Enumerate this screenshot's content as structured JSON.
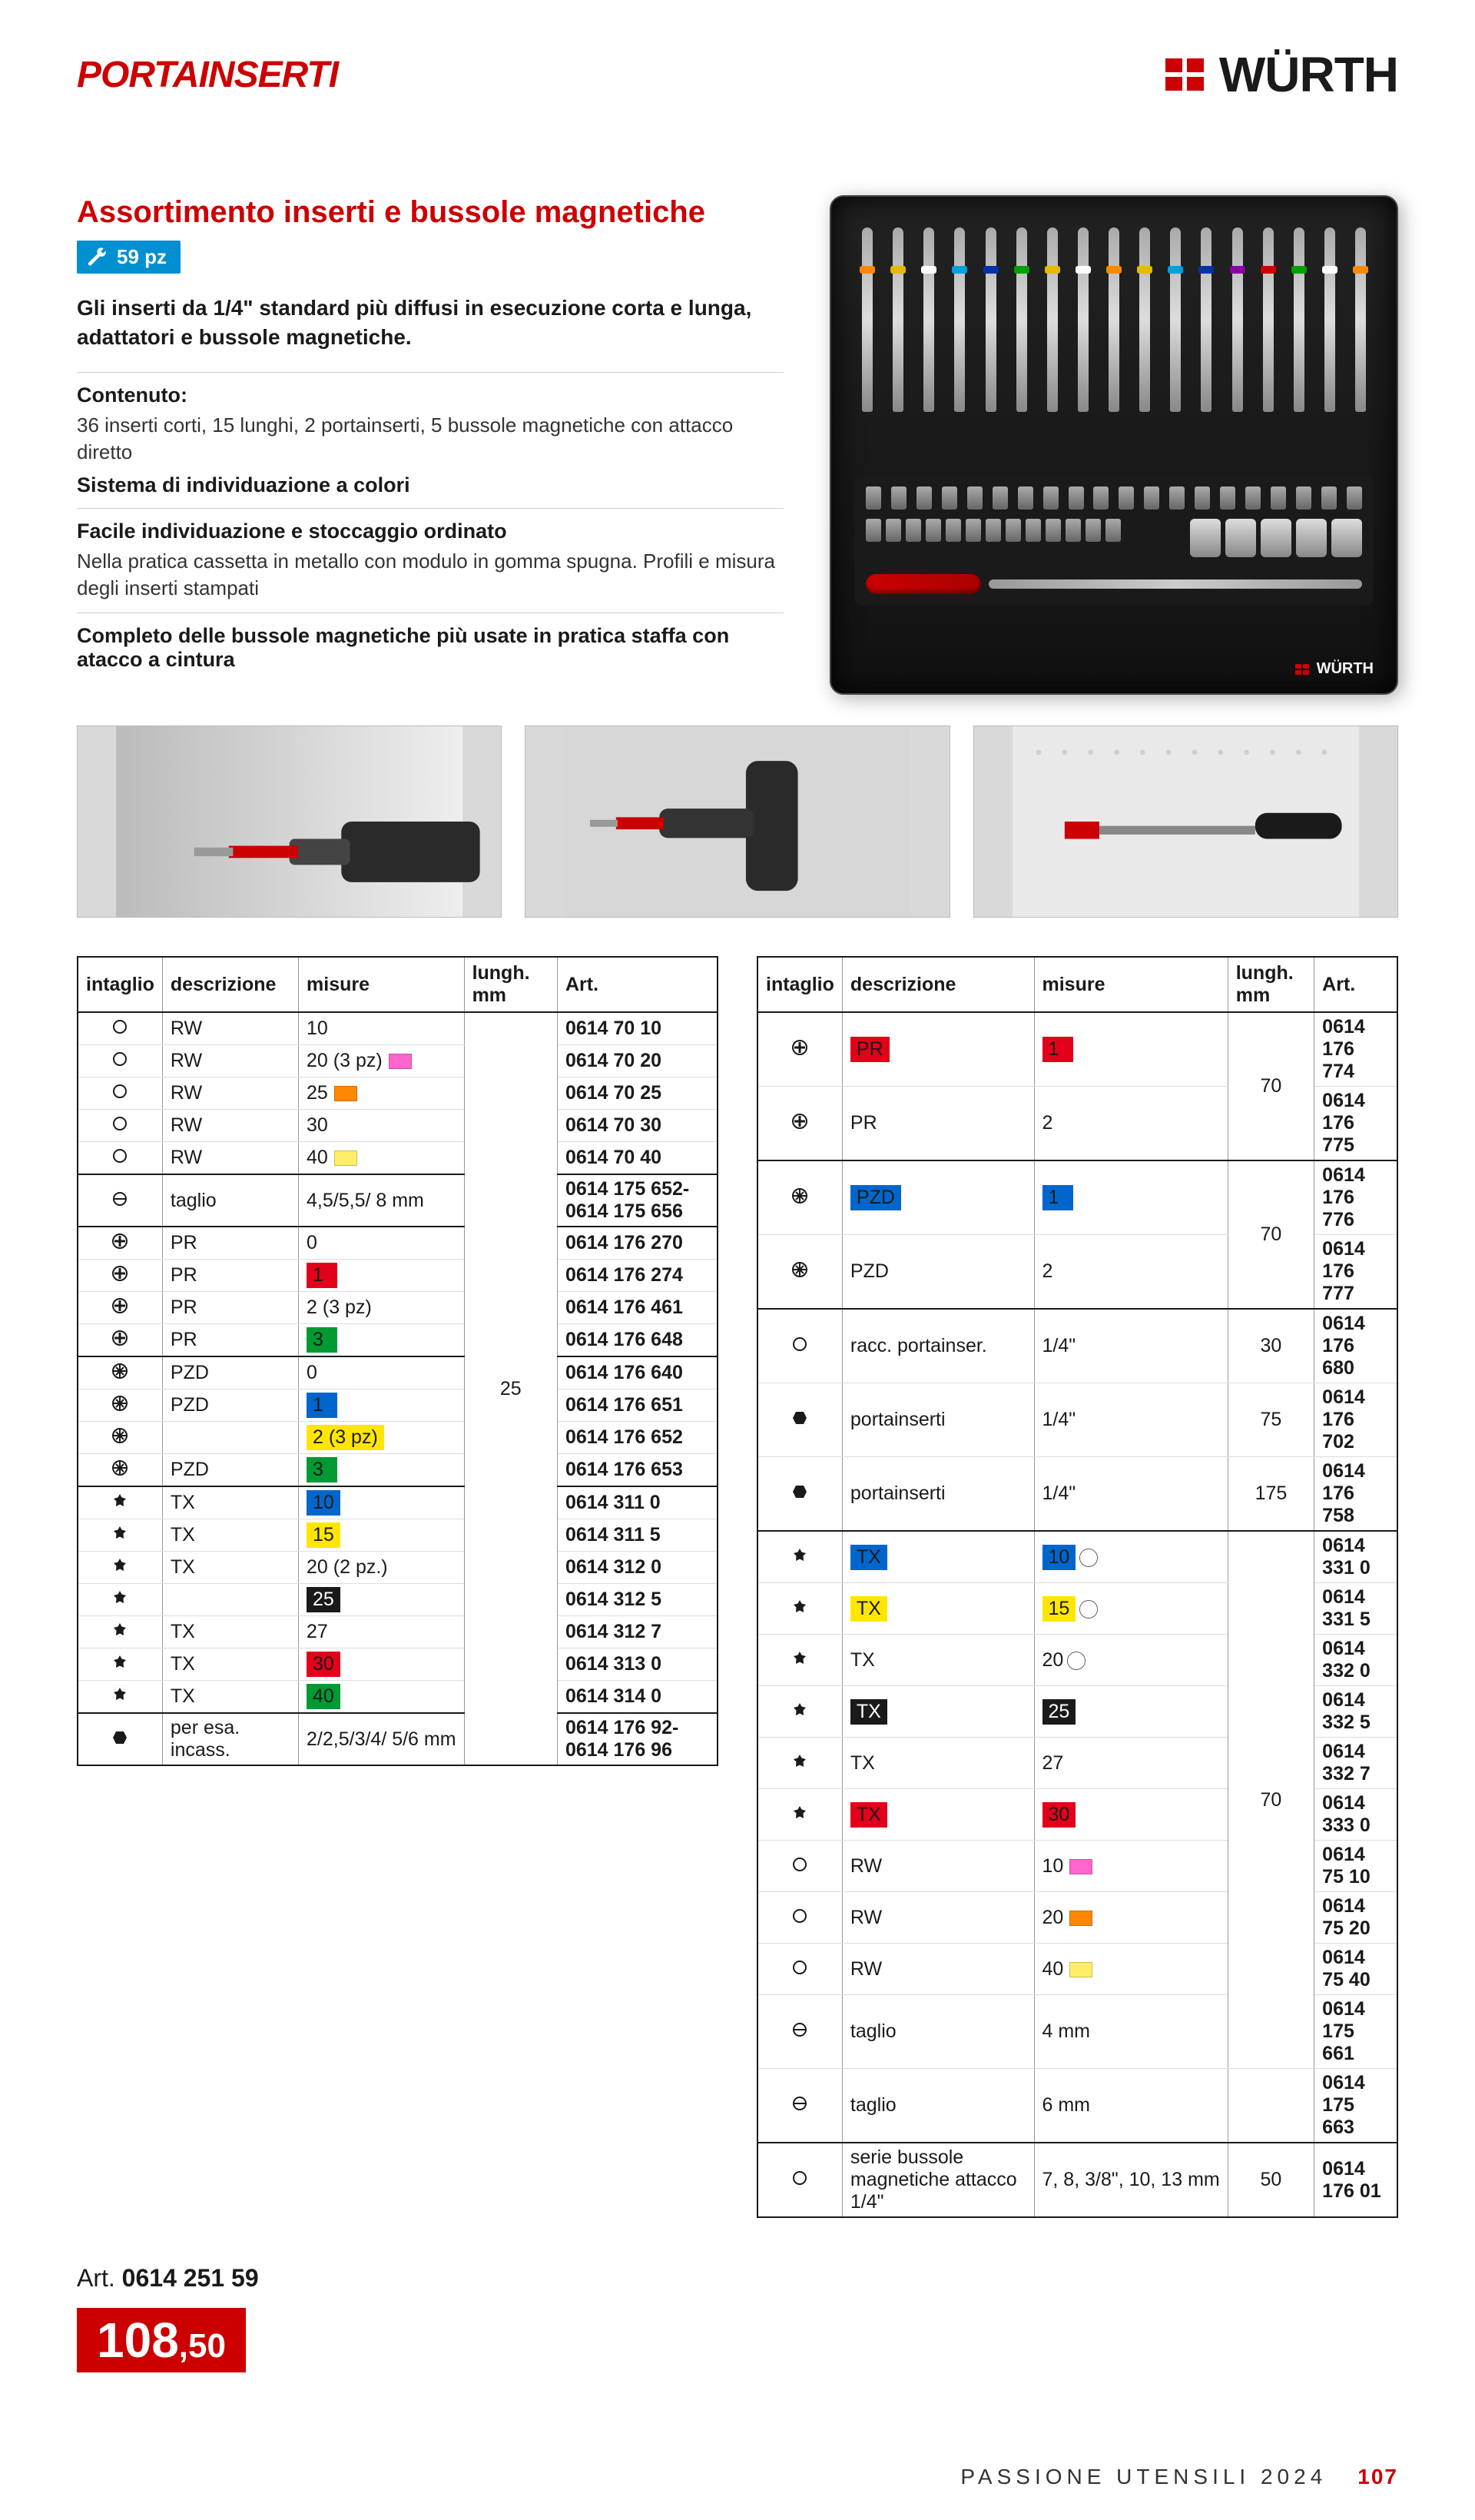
{
  "header": {
    "section_label": "PORTAINSERTI",
    "brand": "WÜRTH"
  },
  "product": {
    "title": "Assortimento inserti e bussole magnetiche",
    "pieces_badge": "59 pz",
    "intro": "Gli inserti da 1/4\" standard più diffusi in esecuzione corta e lunga, adattatori e bussole magnetiche.",
    "content_h": "Contenuto:",
    "content_p": "36 inserti corti, 15 lunghi, 2 portainserti, 5 bussole magnetiche con attacco diretto",
    "feat1_h": "Sistema di individuazione a colori",
    "feat2_h": "Facile individuazione e stoccaggio ordinato",
    "feat2_p": "Nella pratica cassetta in metallo con modulo in gomma spugna. Profili e misura degli inserti stampati",
    "feat3_h": "Completo delle bussole magnetiche più usate in pratica staffa con atacco a cintura",
    "art_label": "Art.",
    "art_number": "0614 251 59",
    "price_int": "108",
    "price_dec": ",50"
  },
  "colors": {
    "brand_red": "#cc0000",
    "badge_blue": "#0090d0",
    "hl_red": "#e2001a",
    "hl_yellow": "#ffe600",
    "hl_blue": "#0066cc",
    "hl_black": "#1a1a1a",
    "hl_green": "#009933",
    "sw_pink": "#ff66cc",
    "sw_orange": "#ff8800",
    "sw_yellow": "#ffcc00",
    "sw_ltyellow": "#ffee66"
  },
  "table_headers": {
    "intaglio": "intaglio",
    "descrizione": "descrizione",
    "misure": "misure",
    "lungh": "lungh. mm",
    "art": "Art."
  },
  "table_left": [
    {
      "sym": "slot",
      "desc": "RW",
      "m": "10",
      "sw": "",
      "len": "",
      "art": "0614 70 10",
      "bt": true
    },
    {
      "sym": "slot",
      "desc": "RW",
      "m": "20 (3 pz)",
      "sw": "#ff66cc",
      "art": "0614 70 20"
    },
    {
      "sym": "slot",
      "desc": "RW",
      "m": "25",
      "sw": "#ff8800",
      "art": "0614 70 25"
    },
    {
      "sym": "slot",
      "desc": "RW",
      "m": "30",
      "sw": "",
      "art": "0614 70 30"
    },
    {
      "sym": "slot",
      "desc": "RW",
      "m": "40",
      "sw": "#ffee66",
      "art": "0614 70 40"
    },
    {
      "sym": "flat",
      "desc": "taglio",
      "m": "4,5/5,5/ 8 mm",
      "sw": "",
      "art": "0614 175 652- 0614 175 656",
      "bt": true
    },
    {
      "sym": "ph",
      "desc": "PR",
      "m": "0",
      "sw": "",
      "art": "0614 176 270",
      "bt": true
    },
    {
      "sym": "ph",
      "desc": "PR",
      "m_hl": "1",
      "hl": "#e2001a",
      "art": "0614 176 274"
    },
    {
      "sym": "ph",
      "desc": "PR",
      "m": "2 (3 pz)",
      "sw": "",
      "art": "0614 176 461"
    },
    {
      "sym": "ph",
      "desc": "PR",
      "m_hl": "3",
      "hl": "#009933",
      "art": "0614 176 648"
    },
    {
      "sym": "pz",
      "desc": "PZD",
      "m": "0",
      "sw": "",
      "art": "0614 176 640",
      "bt": true
    },
    {
      "sym": "pz",
      "desc": "PZD",
      "m_hl": "1",
      "hl": "#0066cc",
      "art": "0614 176 651"
    },
    {
      "sym": "pz",
      "desc": "",
      "m_hl": "2 (3 pz)",
      "hl": "#ffe600",
      "art": "0614 176 652"
    },
    {
      "sym": "pz",
      "desc": "PZD",
      "m_hl": "3",
      "hl": "#009933",
      "art": "0614 176 653"
    },
    {
      "sym": "tx",
      "desc": "TX",
      "m_hl": "10",
      "hl": "#0066cc",
      "art": "0614 311 0",
      "bt": true
    },
    {
      "sym": "tx",
      "desc": "TX",
      "m_hl": "15",
      "hl": "#ffe600",
      "art": "0614 311 5"
    },
    {
      "sym": "tx",
      "desc": "TX",
      "m": "20 (2 pz.)",
      "sw": "",
      "art": "0614 312 0"
    },
    {
      "sym": "tx",
      "desc": "",
      "m_hl": "25",
      "hl": "#1a1a1a",
      "hl_fg": "#fff",
      "art": "0614 312 5"
    },
    {
      "sym": "tx",
      "desc": "TX",
      "m": "27",
      "sw": "",
      "art": "0614 312 7"
    },
    {
      "sym": "tx",
      "desc": "TX",
      "m_hl": "30",
      "hl": "#e2001a",
      "art": "0614 313 0"
    },
    {
      "sym": "tx",
      "desc": "TX",
      "m_hl": "40",
      "hl": "#009933",
      "art": "0614 314 0"
    },
    {
      "sym": "hex",
      "desc": "per esa. incass.",
      "m": "2/2,5/3/4/ 5/6 mm",
      "sw": "",
      "art": "0614 176 92- 0614 176 96",
      "bt": true
    }
  ],
  "left_lungh": "25",
  "table_right": [
    {
      "sym": "ph",
      "desc_hl": "PR",
      "m_hl": "1",
      "hl": "#e2001a",
      "len": "70",
      "art": "0614 176 774",
      "bt": true,
      "len_rs": 2
    },
    {
      "sym": "ph",
      "desc": "PR",
      "m": "2",
      "art": "0614 176 775"
    },
    {
      "sym": "pz",
      "desc_hl": "PZD",
      "m_hl": "1",
      "hl": "#0066cc",
      "len": "70",
      "art": "0614 176 776",
      "bt": true,
      "len_rs": 2
    },
    {
      "sym": "pz",
      "desc": "PZD",
      "m": "2",
      "art": "0614 176 777"
    },
    {
      "sym": "slot",
      "desc": "racc. portainser.",
      "m": "1/4\"",
      "len": "30",
      "art": "0614 176 680",
      "bt": true
    },
    {
      "sym": "hex",
      "desc": "portainserti",
      "m": "1/4\"",
      "len": "75",
      "art": "0614 176 702"
    },
    {
      "sym": "hex",
      "desc": "portainserti",
      "m": "1/4\"",
      "len": "175",
      "art": "0614 176 758"
    },
    {
      "sym": "tx",
      "desc_hl": "TX",
      "m_hl": "10",
      "hl": "#0066cc",
      "ring": true,
      "len": "70",
      "len_rs": 10,
      "art": "0614 331 0",
      "bt": true
    },
    {
      "sym": "tx",
      "desc_hl": "TX",
      "m_hl": "15",
      "hl": "#ffe600",
      "ring": true,
      "art": "0614 331 5"
    },
    {
      "sym": "tx",
      "desc": "TX",
      "m": "20",
      "ring": true,
      "art": "0614 332 0"
    },
    {
      "sym": "tx",
      "desc_hl": "TX",
      "m_hl": "25",
      "hl": "#1a1a1a",
      "hl_fg": "#fff",
      "art": "0614 332 5"
    },
    {
      "sym": "tx",
      "desc": "TX",
      "m": "27",
      "art": "0614 332 7"
    },
    {
      "sym": "tx",
      "desc_hl": "TX",
      "m_hl": "30",
      "hl": "#e2001a",
      "art": "0614 333 0"
    },
    {
      "sym": "slot",
      "desc": "RW",
      "m": "10",
      "sw": "#ff66cc",
      "art": "0614 75 10"
    },
    {
      "sym": "slot",
      "desc": "RW",
      "m": "20",
      "sw": "#ff8800",
      "art": "0614 75 20"
    },
    {
      "sym": "slot",
      "desc": "RW",
      "m": "40",
      "sw": "#ffee66",
      "art": "0614 75 40"
    },
    {
      "sym": "flat",
      "desc": "taglio",
      "m": "4 mm",
      "art": "0614 175 661"
    },
    {
      "sym": "flat",
      "desc": "taglio",
      "m": "6 mm",
      "len": "",
      "art": "0614 175 663"
    },
    {
      "sym": "slot",
      "desc": "serie bussole magnetiche attacco 1/4\"",
      "m": "7, 8, 3/8\", 10, 13 mm",
      "len": "50",
      "art": "0614 176 01",
      "bt": true
    }
  ],
  "footer": {
    "tagline": "PASSIONE UTENSILI 2024",
    "page": "107"
  }
}
